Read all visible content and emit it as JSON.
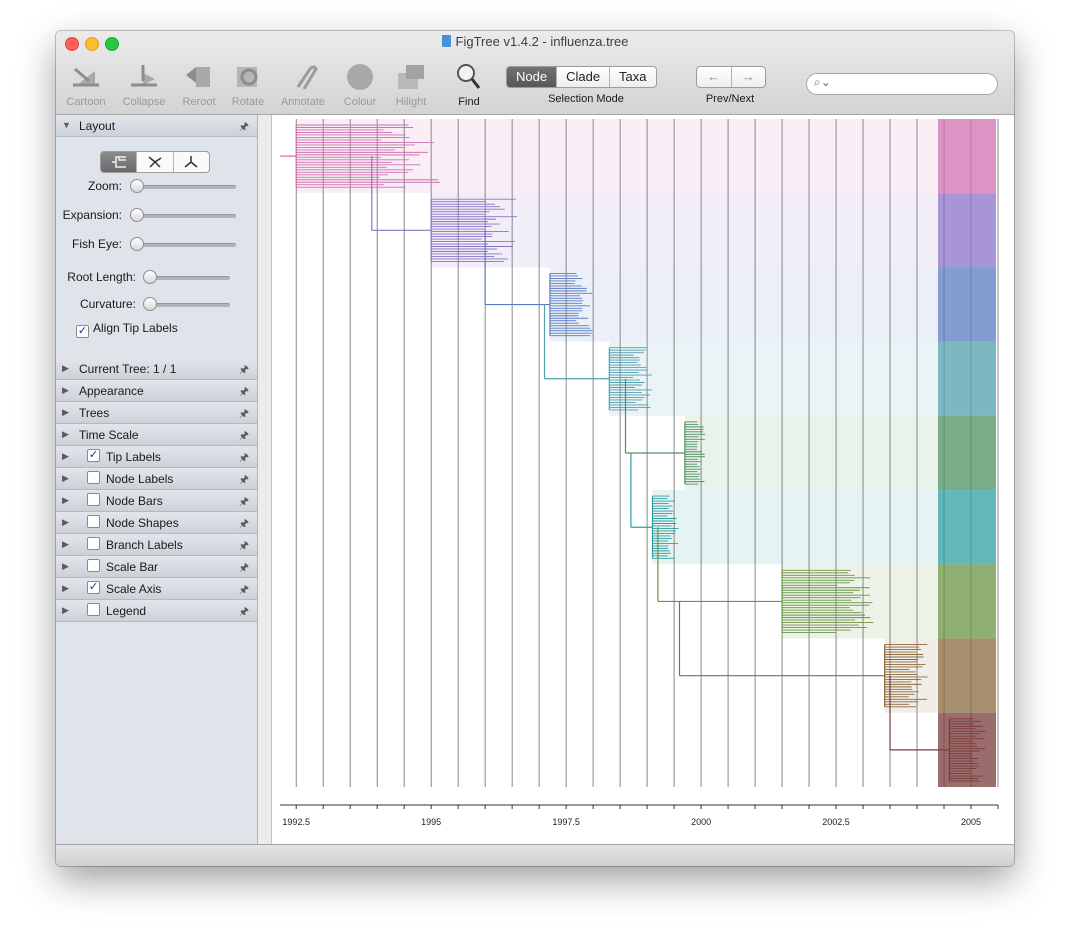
{
  "window": {
    "title": "FigTree v1.4.2 - influenza.tree"
  },
  "toolbar": {
    "tools": [
      {
        "label": "Cartoon",
        "icon": "cartoon-icon"
      },
      {
        "label": "Collapse",
        "icon": "collapse-icon"
      },
      {
        "label": "Reroot",
        "icon": "reroot-icon"
      },
      {
        "label": "Rotate",
        "icon": "rotate-icon"
      },
      {
        "label": "Annotate",
        "icon": "annotate-icon"
      },
      {
        "label": "Colour",
        "icon": "colour-icon"
      },
      {
        "label": "Hilight",
        "icon": "hilight-icon"
      },
      {
        "label": "Find",
        "icon": "find-icon"
      }
    ],
    "selection_mode": {
      "label": "Selection Mode",
      "options": [
        "Node",
        "Clade",
        "Taxa"
      ],
      "active": "Node"
    },
    "prev_next": {
      "label": "Prev/Next",
      "prev_icon": "arrow-left-icon",
      "next_icon": "arrow-right-icon"
    },
    "search": {
      "placeholder": "",
      "icon": "search-icon"
    }
  },
  "sidebar": {
    "layout": {
      "title": "Layout",
      "sliders": [
        {
          "label": "Zoom:",
          "value": 0
        },
        {
          "label": "Expansion:",
          "value": 0
        },
        {
          "label": "Fish Eye:",
          "value": 0
        },
        {
          "label": "Root Length:",
          "value": 0
        },
        {
          "label": "Curvature:",
          "value": 0
        }
      ],
      "align_tip_labels": {
        "label": "Align Tip Labels",
        "checked": true
      }
    },
    "sections": [
      {
        "title": "Current Tree: 1 / 1",
        "has_checkbox": false,
        "checked": false
      },
      {
        "title": "Appearance",
        "has_checkbox": false,
        "checked": false
      },
      {
        "title": "Trees",
        "has_checkbox": false,
        "checked": false
      },
      {
        "title": "Time Scale",
        "has_checkbox": false,
        "checked": false
      },
      {
        "title": "Tip Labels",
        "has_checkbox": true,
        "checked": true
      },
      {
        "title": "Node Labels",
        "has_checkbox": true,
        "checked": false
      },
      {
        "title": "Node Bars",
        "has_checkbox": true,
        "checked": false
      },
      {
        "title": "Node Shapes",
        "has_checkbox": true,
        "checked": false
      },
      {
        "title": "Branch Labels",
        "has_checkbox": true,
        "checked": false
      },
      {
        "title": "Scale Bar",
        "has_checkbox": true,
        "checked": false
      },
      {
        "title": "Scale Axis",
        "has_checkbox": true,
        "checked": true
      },
      {
        "title": "Legend",
        "has_checkbox": true,
        "checked": false
      }
    ]
  },
  "tree": {
    "axis": {
      "min": 1992.2,
      "max": 2005.5,
      "ticks": [
        1992.5,
        1995,
        1997.5,
        2000,
        2002.5,
        2005
      ]
    },
    "clades": [
      {
        "color": "#d070b0",
        "root_x": 1992.2,
        "start": 1992.5,
        "end": 1995.2
      },
      {
        "color": "#8a72c8",
        "root_x": 1993.9,
        "start": 1995.0,
        "end": 1996.6
      },
      {
        "color": "#5a7cc4",
        "root_x": 1996.0,
        "start": 1997.2,
        "end": 1998.0
      },
      {
        "color": "#50a0ae",
        "root_x": 1997.1,
        "start": 1998.3,
        "end": 1999.1
      },
      {
        "color": "#4f9060",
        "root_x": 1998.6,
        "start": 1999.7,
        "end": 2000.1
      },
      {
        "color": "#2e9fa0",
        "root_x": 1998.7,
        "start": 1999.1,
        "end": 1999.6
      },
      {
        "color": "#6a9444",
        "root_x": 1999.2,
        "start": 2001.5,
        "end": 2003.2
      },
      {
        "color": "#8a6a3e",
        "root_x": 1999.6,
        "start": 2003.4,
        "end": 2004.2
      },
      {
        "color": "#7a3b3b",
        "root_x": 2003.5,
        "start": 2004.6,
        "end": 2005.3
      }
    ]
  }
}
